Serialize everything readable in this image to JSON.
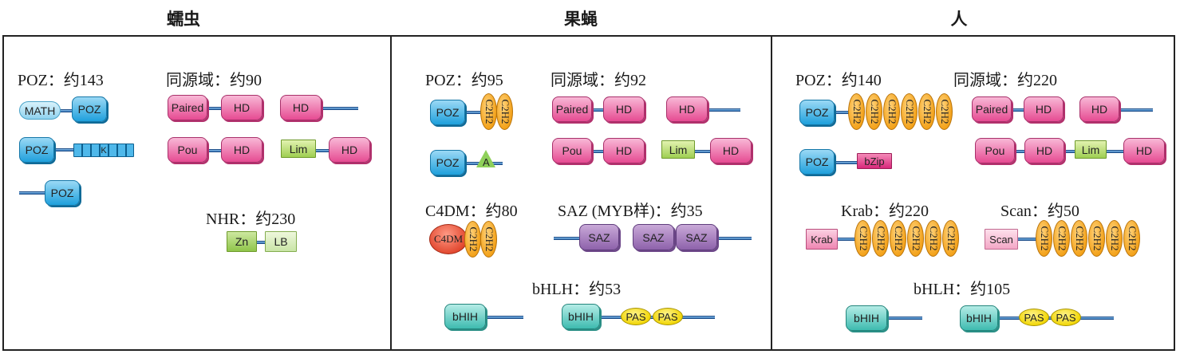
{
  "headers": {
    "worm": "蠕虫",
    "fly": "果蝇",
    "human": "人"
  },
  "worm": {
    "poz_label": "POZ：约143",
    "homeo_label": "同源域：约90",
    "nhr_label": "NHR：约230",
    "math": "MATH",
    "poz": "POZ",
    "k": "K",
    "paired": "Paired",
    "hd": "HD",
    "pou": "Pou",
    "lim": "Lim",
    "zn": "Zn",
    "lb": "LB"
  },
  "fly": {
    "poz_label": "POZ：约95",
    "homeo_label": "同源域：约92",
    "c4dm_label": "C4DM：约80",
    "saz_label": "SAZ (MYB样)：约35",
    "bhlh_label": "bHLH：约53",
    "poz": "POZ",
    "c2h2": "C2H2",
    "a": "A",
    "paired": "Paired",
    "hd": "HD",
    "pou": "Pou",
    "lim": "Lim",
    "c4dm": "C4DM",
    "saz": "SAZ",
    "bhih": "bHIH",
    "pas": "PAS"
  },
  "human": {
    "poz_label": "POZ：约140",
    "homeo_label": "同源域：约220",
    "krab_label": "Krab：约220",
    "scan_label": "Scan：约50",
    "bhlh_label": "bHLH：约105",
    "poz": "POZ",
    "c2h2": "C2H2",
    "bzip": "bZip",
    "paired": "Paired",
    "hd": "HD",
    "pou": "Pou",
    "lim": "Lim",
    "krab": "Krab",
    "scan": "Scan",
    "bhih": "bHIH",
    "pas": "PAS"
  },
  "colors": {
    "poz": "#1fa0dc",
    "hd": "#e64b92",
    "lim": "#9fcf52",
    "saz": "#8e62ab",
    "bhlh": "#3ebbb0",
    "c2h2": "#f3a21b",
    "pas": "#f0d400",
    "c4dm": "#e0442b",
    "line": "#2f6fb3"
  }
}
